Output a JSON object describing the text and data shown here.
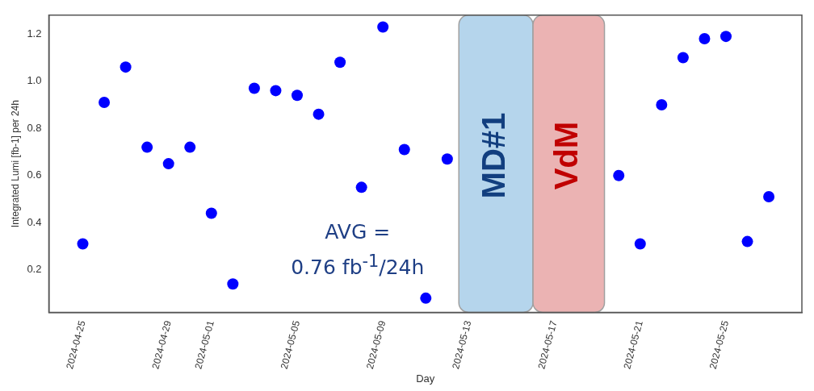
{
  "chart_data": {
    "type": "scatter",
    "xlabel": "Day",
    "ylabel": "Integrated Lumi [fb-1] per 24h",
    "x": [
      "2024-04-25",
      "2024-04-26",
      "2024-04-27",
      "2024-04-28",
      "2024-04-29",
      "2024-04-30",
      "2024-05-01",
      "2024-05-02",
      "2024-05-03",
      "2024-05-04",
      "2024-05-05",
      "2024-05-06",
      "2024-05-07",
      "2024-05-08",
      "2024-05-09",
      "2024-05-10",
      "2024-05-11",
      "2024-05-12",
      "2024-05-20",
      "2024-05-21",
      "2024-05-22",
      "2024-05-23",
      "2024-05-24",
      "2024-05-25",
      "2024-05-26",
      "2024-05-27"
    ],
    "series": [
      {
        "color": "#0000ff",
        "values": [
          0.31,
          0.91,
          1.06,
          0.72,
          0.65,
          0.72,
          0.44,
          0.14,
          0.97,
          0.96,
          0.94,
          0.86,
          1.08,
          0.55,
          1.23,
          0.71,
          0.08,
          0.67,
          0.6,
          0.31,
          0.9,
          1.1,
          1.18,
          1.19,
          0.32,
          0.51
        ]
      }
    ],
    "xlim": [
      "2024-04-23T10:00",
      "2024-05-28T13:00"
    ],
    "xticks": [
      "2024-04-25",
      "2024-04-29",
      "2024-05-01",
      "2024-05-05",
      "2024-05-09",
      "2024-05-13",
      "2024-05-17",
      "2024-05-21",
      "2024-05-25"
    ],
    "ylim": [
      0.02,
      1.28
    ],
    "yticks": [
      0.2,
      0.4,
      0.6,
      0.8,
      {
        "value": 1,
        "label": "1.0"
      },
      1.2
    ],
    "bands": [
      {
        "axis": "x",
        "from": "2024-05-12T13:00",
        "to": "2024-05-16T00:00",
        "label": "MD#1",
        "color": "#b5d5ec"
      },
      {
        "axis": "x",
        "from": "2024-05-16T00:00",
        "to": "2024-05-19T08:00",
        "label": "VdM",
        "color": "#ebb3b3"
      }
    ],
    "annotations": [
      "AVG =\n0.76 fb$^{-1}$/24h"
    ],
    "marker": "circle",
    "grid": false,
    "legend": false
  }
}
